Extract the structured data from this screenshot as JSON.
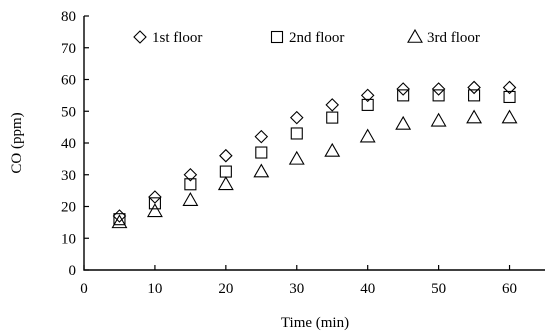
{
  "chart_data": {
    "type": "scatter",
    "title": "",
    "xlabel": "Time (min)",
    "ylabel": "CO (ppm)",
    "xlim": [
      0,
      65
    ],
    "ylim": [
      0,
      80
    ],
    "xticks": [
      0,
      10,
      20,
      30,
      40,
      50,
      60
    ],
    "yticks": [
      0,
      10,
      20,
      30,
      40,
      50,
      60,
      70,
      80
    ],
    "xtick_labels": [
      "0",
      "10",
      "20",
      "30",
      "40",
      "50",
      "60"
    ],
    "ytick_labels": [
      "0",
      "10",
      "20",
      "30",
      "40",
      "50",
      "60",
      "70",
      "80"
    ],
    "grid": false,
    "legend_position": "top",
    "x": [
      5,
      10,
      15,
      20,
      25,
      30,
      35,
      40,
      45,
      50,
      55,
      60
    ],
    "series": [
      {
        "name": "1st floor",
        "marker": "diamond",
        "values": [
          17,
          23,
          30,
          36,
          42,
          48,
          52,
          55,
          57,
          57,
          57.5,
          57.5
        ]
      },
      {
        "name": "2nd floor",
        "marker": "square",
        "values": [
          16,
          21,
          27,
          31,
          37,
          43,
          48,
          52,
          55,
          55,
          55,
          54.5
        ]
      },
      {
        "name": "3rd floor",
        "marker": "triangle",
        "values": [
          15,
          18.5,
          22,
          27,
          31,
          35,
          37.5,
          42,
          46,
          47,
          48,
          48
        ]
      }
    ]
  }
}
